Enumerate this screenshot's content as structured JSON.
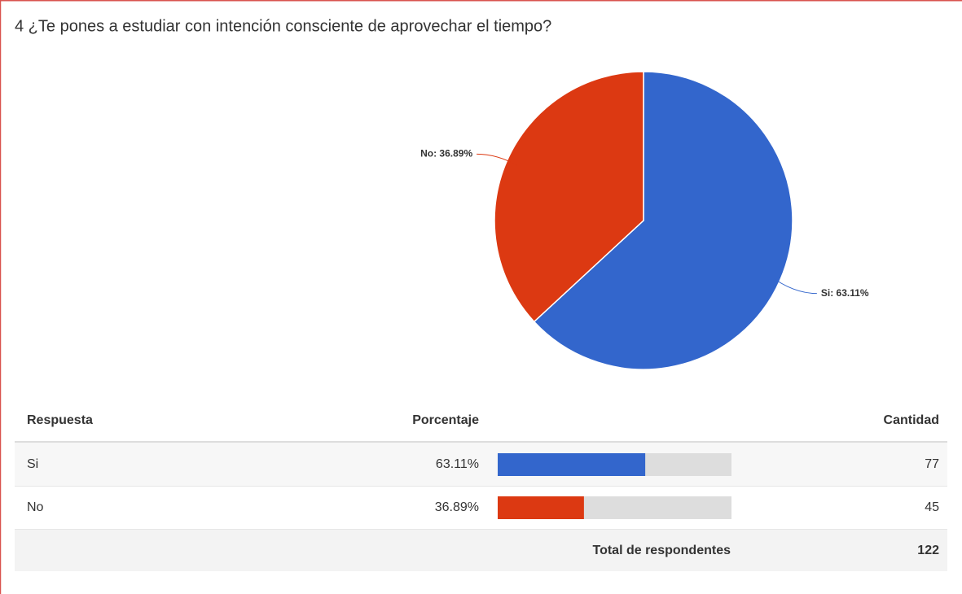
{
  "chart_data": {
    "type": "pie",
    "title": "4 ¿Te pones a estudiar con intención consciente de aprovechar el tiempo?",
    "categories": [
      "Si",
      "No"
    ],
    "values": [
      63.11,
      36.89
    ],
    "value_labels": [
      "Si: 63.11%",
      "No: 36.89%"
    ],
    "colors": [
      "#3366cc",
      "#dc3912"
    ]
  },
  "table": {
    "headers": [
      "Respuesta",
      "Porcentaje",
      "Cantidad"
    ],
    "rows": [
      [
        "Si",
        "63.11%",
        77
      ],
      [
        "No",
        "36.89%",
        45
      ]
    ],
    "total_label": "Total de respondentes",
    "total": 122
  }
}
